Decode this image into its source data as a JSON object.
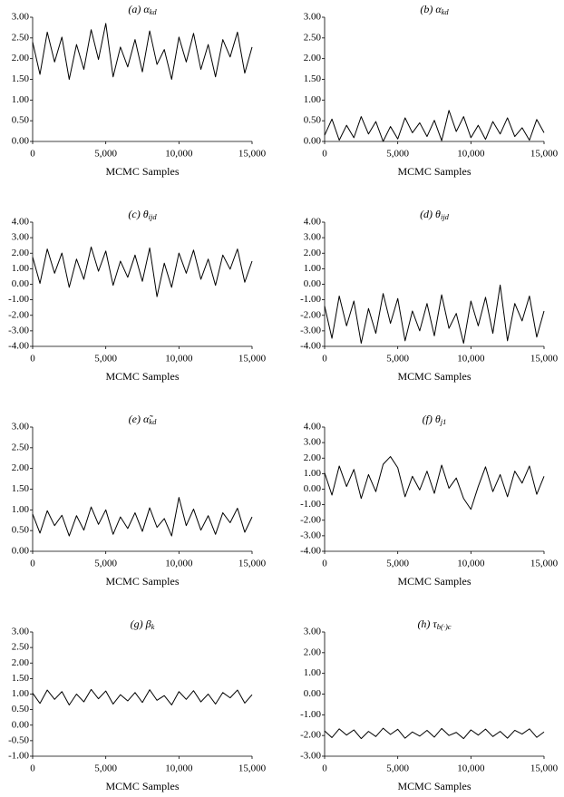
{
  "chart_data": [
    {
      "type": "line",
      "title": "(a) α",
      "title_subscript": "kd",
      "x_label": "MCMC Samples",
      "color": "#000000",
      "x": [
        0,
        500,
        1000,
        1500,
        2000,
        2500,
        3000,
        3500,
        4000,
        4500,
        5000,
        5500,
        6000,
        6500,
        7000,
        7500,
        8000,
        8500,
        9000,
        9500,
        10000,
        10500,
        11000,
        11500,
        12000,
        12500,
        13000,
        13500,
        14000,
        14500,
        15000
      ],
      "values": [
        2.4,
        1.62,
        2.64,
        1.92,
        2.52,
        1.5,
        2.34,
        1.74,
        2.7,
        1.98,
        2.85,
        1.56,
        2.28,
        1.8,
        2.46,
        1.68,
        2.67,
        1.86,
        2.22,
        1.5,
        2.52,
        1.92,
        2.61,
        1.74,
        2.34,
        1.56,
        2.46,
        2.04,
        2.64,
        1.65,
        2.28
      ],
      "xlim": [
        0,
        15000
      ],
      "xticks": [
        0,
        {
          "value": 5000,
          "label": "5,000"
        },
        {
          "value": 10000,
          "label": "10,000"
        },
        {
          "value": 15000,
          "label": "15,000"
        }
      ],
      "ylim": [
        0,
        3
      ],
      "yticks": [
        {
          "value": 0,
          "label": "0.00"
        },
        {
          "value": 0.5,
          "label": "0.50"
        },
        {
          "value": 1,
          "label": "1.00"
        },
        {
          "value": 1.5,
          "label": "1.50"
        },
        {
          "value": 2,
          "label": "2.00"
        },
        {
          "value": 2.5,
          "label": "2.50"
        },
        {
          "value": 3,
          "label": "3.00"
        }
      ]
    },
    {
      "type": "line",
      "title": "(b) α",
      "title_subscript": "kd",
      "x_label": "MCMC Samples",
      "color": "#000000",
      "x": [
        0,
        500,
        1000,
        1500,
        2000,
        2500,
        3000,
        3500,
        4000,
        4500,
        5000,
        5500,
        6000,
        6500,
        7000,
        7500,
        8000,
        8500,
        9000,
        9500,
        10000,
        10500,
        11000,
        11500,
        12000,
        12500,
        13000,
        13500,
        14000,
        14500,
        15000
      ],
      "values": [
        0.15,
        0.54,
        0.03,
        0.39,
        0.09,
        0.6,
        0.18,
        0.48,
        0.0,
        0.36,
        0.06,
        0.57,
        0.21,
        0.45,
        0.12,
        0.51,
        0.02,
        0.75,
        0.24,
        0.6,
        0.09,
        0.39,
        0.05,
        0.48,
        0.18,
        0.57,
        0.12,
        0.33,
        0.03,
        0.53,
        0.21
      ],
      "xlim": [
        0,
        15000
      ],
      "xticks": [
        0,
        {
          "value": 5000,
          "label": "5,000"
        },
        {
          "value": 10000,
          "label": "10,000"
        },
        {
          "value": 15000,
          "label": "15,000"
        }
      ],
      "ylim": [
        0,
        3
      ],
      "yticks": [
        {
          "value": 0,
          "label": "0.00"
        },
        {
          "value": 0.5,
          "label": "0.50"
        },
        {
          "value": 1,
          "label": "1.00"
        },
        {
          "value": 1.5,
          "label": "1.50"
        },
        {
          "value": 2,
          "label": "2.00"
        },
        {
          "value": 2.5,
          "label": "2.50"
        },
        {
          "value": 3,
          "label": "3.00"
        }
      ]
    },
    {
      "type": "line",
      "title": "(c) θ",
      "title_subscript": "ijd",
      "x_label": "MCMC Samples",
      "color": "#000000",
      "x": [
        0,
        500,
        1000,
        1500,
        2000,
        2500,
        3000,
        3500,
        4000,
        4500,
        5000,
        5500,
        6000,
        6500,
        7000,
        7500,
        8000,
        8500,
        9000,
        9500,
        10000,
        10500,
        11000,
        11500,
        12000,
        12500,
        13000,
        13500,
        14000,
        14500,
        15000
      ],
      "values": [
        1.75,
        0.06,
        2.27,
        0.71,
        2.01,
        -0.2,
        1.62,
        0.32,
        2.4,
        0.84,
        2.14,
        -0.07,
        1.49,
        0.45,
        1.88,
        0.19,
        2.34,
        -0.8,
        1.36,
        -0.2,
        2.01,
        0.71,
        2.2,
        0.32,
        1.62,
        -0.07,
        1.88,
        0.97,
        2.27,
        0.13,
        1.49
      ],
      "xlim": [
        0,
        15000
      ],
      "xticks": [
        0,
        {
          "value": 5000,
          "label": "5,000"
        },
        {
          "value": 10000,
          "label": "10,000"
        },
        {
          "value": 15000,
          "label": "15,000"
        }
      ],
      "ylim": [
        -4,
        4
      ],
      "yticks": [
        {
          "value": -4,
          "label": "-4.00"
        },
        {
          "value": -3,
          "label": "-3.00"
        },
        {
          "value": -2,
          "label": "-2.00"
        },
        {
          "value": -1,
          "label": "-1.00"
        },
        {
          "value": 0,
          "label": "0.00"
        },
        {
          "value": 1,
          "label": "1.00"
        },
        {
          "value": 2,
          "label": "2.00"
        },
        {
          "value": 3,
          "label": "3.00"
        },
        {
          "value": 4,
          "label": "4.00"
        }
      ]
    },
    {
      "type": "line",
      "title": "(d) θ",
      "title_subscript": "ijd",
      "x_label": "MCMC Samples",
      "color": "#000000",
      "x": [
        0,
        500,
        1000,
        1500,
        2000,
        2500,
        3000,
        3500,
        4000,
        4500,
        5000,
        5500,
        6000,
        6500,
        7000,
        7500,
        8000,
        8500,
        9000,
        9500,
        10000,
        10500,
        11000,
        11500,
        12000,
        12500,
        13000,
        13500,
        14000,
        14500,
        15000
      ],
      "values": [
        -1.4,
        -3.48,
        -0.76,
        -2.68,
        -1.08,
        -3.8,
        -1.56,
        -3.16,
        -0.6,
        -2.52,
        -0.92,
        -3.64,
        -1.72,
        -3.0,
        -1.24,
        -3.32,
        -0.68,
        -2.84,
        -1.88,
        -3.8,
        -1.08,
        -2.68,
        -0.84,
        -3.16,
        -0.05,
        -3.64,
        -1.24,
        -2.36,
        -0.76,
        -3.4,
        -1.72
      ],
      "xlim": [
        0,
        15000
      ],
      "xticks": [
        0,
        {
          "value": 5000,
          "label": "5,000"
        },
        {
          "value": 10000,
          "label": "10,000"
        },
        {
          "value": 15000,
          "label": "15,000"
        }
      ],
      "ylim": [
        -4,
        4
      ],
      "yticks": [
        {
          "value": -4,
          "label": "-4.00"
        },
        {
          "value": -3,
          "label": "-3.00"
        },
        {
          "value": -2,
          "label": "-2.00"
        },
        {
          "value": -1,
          "label": "-1.00"
        },
        {
          "value": 0,
          "label": "0.00"
        },
        {
          "value": 1,
          "label": "1.00"
        },
        {
          "value": 2,
          "label": "2.00"
        },
        {
          "value": 3,
          "label": "3.00"
        },
        {
          "value": 4,
          "label": "4.00"
        }
      ]
    },
    {
      "type": "line",
      "title": "(e) α̃",
      "title_subscript": "kd",
      "x_label": "MCMC Samples",
      "color": "#000000",
      "x": [
        0,
        500,
        1000,
        1500,
        2000,
        2500,
        3000,
        3500,
        4000,
        4500,
        5000,
        5500,
        6000,
        6500,
        7000,
        7500,
        8000,
        8500,
        9000,
        9500,
        10000,
        10500,
        11000,
        11500,
        12000,
        12500,
        13000,
        13500,
        14000,
        14500,
        15000
      ],
      "values": [
        0.9,
        0.44,
        0.98,
        0.62,
        0.87,
        0.37,
        0.86,
        0.51,
        1.07,
        0.65,
        1.0,
        0.41,
        0.83,
        0.55,
        0.93,
        0.48,
        1.05,
        0.58,
        0.79,
        0.37,
        1.3,
        0.62,
        1.02,
        0.51,
        0.86,
        0.41,
        0.93,
        0.69,
        1.04,
        0.46,
        0.83
      ],
      "xlim": [
        0,
        15000
      ],
      "xticks": [
        0,
        {
          "value": 5000,
          "label": "5,000"
        },
        {
          "value": 10000,
          "label": "10,000"
        },
        {
          "value": 15000,
          "label": "15,000"
        }
      ],
      "ylim": [
        0,
        3
      ],
      "yticks": [
        {
          "value": 0,
          "label": "0.00"
        },
        {
          "value": 0.5,
          "label": "0.50"
        },
        {
          "value": 1,
          "label": "1.00"
        },
        {
          "value": 1.5,
          "label": "1.50"
        },
        {
          "value": 2,
          "label": "2.00"
        },
        {
          "value": 2.5,
          "label": "2.50"
        },
        {
          "value": 3,
          "label": "3.00"
        }
      ]
    },
    {
      "type": "line",
      "title": "(f) θ",
      "title_subscript": "j1",
      "x_label": "MCMC Samples",
      "color": "#000000",
      "x": [
        0,
        500,
        1000,
        1500,
        2000,
        2500,
        3000,
        3500,
        4000,
        4500,
        5000,
        5500,
        6000,
        6500,
        7000,
        7500,
        8000,
        8500,
        9000,
        9500,
        10000,
        10500,
        11000,
        11500,
        12000,
        12500,
        13000,
        13500,
        14000,
        14500,
        15000
      ],
      "values": [
        1.05,
        -0.38,
        1.49,
        0.17,
        1.27,
        -0.6,
        0.94,
        -0.16,
        1.6,
        2.1,
        1.38,
        -0.49,
        0.83,
        -0.05,
        1.16,
        -0.27,
        1.55,
        0.06,
        0.72,
        -0.6,
        -1.3,
        0.17,
        1.44,
        -0.16,
        0.94,
        -0.49,
        1.16,
        0.39,
        1.49,
        -0.33,
        0.83
      ],
      "xlim": [
        0,
        15000
      ],
      "xticks": [
        0,
        {
          "value": 5000,
          "label": "5,000"
        },
        {
          "value": 10000,
          "label": "10,000"
        },
        {
          "value": 15000,
          "label": "15,000"
        }
      ],
      "ylim": [
        -4,
        4
      ],
      "yticks": [
        {
          "value": -4,
          "label": "-4.00"
        },
        {
          "value": -3,
          "label": "-3.00"
        },
        {
          "value": -2,
          "label": "-2.00"
        },
        {
          "value": -1,
          "label": "-1.00"
        },
        {
          "value": 0,
          "label": "0.00"
        },
        {
          "value": 1,
          "label": "1.00"
        },
        {
          "value": 2,
          "label": "2.00"
        },
        {
          "value": 3,
          "label": "3.00"
        },
        {
          "value": 4,
          "label": "4.00"
        }
      ]
    },
    {
      "type": "line",
      "title": "(g) β",
      "title_subscript": "k",
      "x_label": "MCMC Samples",
      "color": "#000000",
      "x": [
        0,
        500,
        1000,
        1500,
        2000,
        2500,
        3000,
        3500,
        4000,
        4500,
        5000,
        5500,
        6000,
        6500,
        7000,
        7500,
        8000,
        8500,
        9000,
        9500,
        10000,
        10500,
        11000,
        11500,
        12000,
        12500,
        13000,
        13500,
        14000,
        14500,
        15000
      ],
      "values": [
        1.03,
        0.7,
        1.13,
        0.83,
        1.08,
        0.65,
        1.0,
        0.75,
        1.15,
        0.85,
        1.1,
        0.68,
        0.98,
        0.78,
        1.05,
        0.73,
        1.14,
        0.8,
        0.95,
        0.65,
        1.08,
        0.83,
        1.11,
        0.75,
        1.0,
        0.68,
        1.05,
        0.88,
        1.13,
        0.71,
        0.98
      ],
      "xlim": [
        0,
        15000
      ],
      "xticks": [
        0,
        {
          "value": 5000,
          "label": "5,000"
        },
        {
          "value": 10000,
          "label": "10,000"
        },
        {
          "value": 15000,
          "label": "15,000"
        }
      ],
      "ylim": [
        -1,
        3
      ],
      "yticks": [
        {
          "value": -1,
          "label": "-1.00"
        },
        {
          "value": -0.5,
          "label": "-0.50"
        },
        {
          "value": 0,
          "label": "0.00"
        },
        {
          "value": 0.5,
          "label": "0.50"
        },
        {
          "value": 1,
          "label": "1.00"
        },
        {
          "value": 1.5,
          "label": "1.50"
        },
        {
          "value": 2,
          "label": "2.00"
        },
        {
          "value": 2.5,
          "label": "2.50"
        },
        {
          "value": 3,
          "label": "3.00"
        }
      ]
    },
    {
      "type": "line",
      "title": "(h) τ",
      "title_subscript": "b(·)c",
      "x_label": "MCMC Samples",
      "color": "#000000",
      "x": [
        0,
        500,
        1000,
        1500,
        2000,
        2500,
        3000,
        3500,
        4000,
        4500,
        5000,
        5500,
        6000,
        6500,
        7000,
        7500,
        8000,
        8500,
        9000,
        9500,
        10000,
        10500,
        11000,
        11500,
        12000,
        12500,
        13000,
        13500,
        14000,
        14500,
        15000
      ],
      "values": [
        -1.78,
        -2.1,
        -1.68,
        -1.98,
        -1.73,
        -2.15,
        -1.8,
        -2.05,
        -1.65,
        -1.95,
        -1.7,
        -2.13,
        -1.83,
        -2.03,
        -1.75,
        -2.08,
        -1.66,
        -2.0,
        -1.85,
        -2.15,
        -1.73,
        -1.98,
        -1.69,
        -2.05,
        -1.8,
        -2.13,
        -1.75,
        -1.93,
        -1.68,
        -2.09,
        -1.83
      ],
      "xlim": [
        0,
        15000
      ],
      "xticks": [
        0,
        {
          "value": 5000,
          "label": "5,000"
        },
        {
          "value": 10000,
          "label": "10,000"
        },
        {
          "value": 15000,
          "label": "15,000"
        }
      ],
      "ylim": [
        -3,
        3
      ],
      "yticks": [
        {
          "value": -3,
          "label": "-3.00"
        },
        {
          "value": -2,
          "label": "-2.00"
        },
        {
          "value": -1,
          "label": "-1.00"
        },
        {
          "value": 0,
          "label": "0.00"
        },
        {
          "value": 1,
          "label": "1.00"
        },
        {
          "value": 2,
          "label": "2.00"
        },
        {
          "value": 3,
          "label": "3.00"
        }
      ]
    }
  ]
}
